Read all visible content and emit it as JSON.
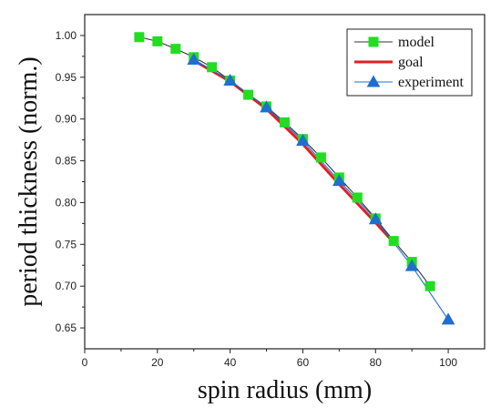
{
  "chart_data": {
    "type": "line",
    "xlabel": "spin radius (mm)",
    "ylabel": "period thickness (norm.)",
    "xlim": [
      0,
      110
    ],
    "ylim": [
      0.625,
      1.025
    ],
    "xticks": [
      0,
      20,
      40,
      60,
      80,
      100
    ],
    "yticks": [
      0.65,
      0.7,
      0.75,
      0.8,
      0.85,
      0.9,
      0.95,
      1.0
    ],
    "xtick_labels": [
      "0",
      "20",
      "40",
      "60",
      "80",
      "100"
    ],
    "ytick_labels": [
      "0.65",
      "0.70",
      "0.75",
      "0.80",
      "0.85",
      "0.90",
      "0.95",
      "1.00"
    ],
    "grid": false,
    "legend_position": "top-right",
    "series": [
      {
        "name": "model",
        "color": "#22dd22",
        "line_color": "#333333",
        "marker": "square",
        "x": [
          15,
          20,
          25,
          30,
          35,
          40,
          45,
          50,
          55,
          60,
          65,
          70,
          75,
          80,
          85,
          90,
          95
        ],
        "y": [
          0.998,
          0.993,
          0.984,
          0.974,
          0.962,
          0.946,
          0.929,
          0.915,
          0.896,
          0.876,
          0.854,
          0.83,
          0.806,
          0.781,
          0.754,
          0.729,
          0.7
        ]
      },
      {
        "name": "goal",
        "color": "#e02020",
        "marker": "none",
        "x": [
          30,
          40,
          50,
          60,
          70,
          80,
          85
        ],
        "y": [
          0.97,
          0.945,
          0.912,
          0.87,
          0.822,
          0.776,
          0.752
        ]
      },
      {
        "name": "experiment",
        "color": "#1f6fd0",
        "line_color": "#1f6fd0",
        "marker": "triangle",
        "x": [
          30,
          40,
          50,
          60,
          70,
          80,
          90,
          100
        ],
        "y": [
          0.971,
          0.946,
          0.914,
          0.874,
          0.826,
          0.78,
          0.724,
          0.66
        ]
      }
    ]
  }
}
